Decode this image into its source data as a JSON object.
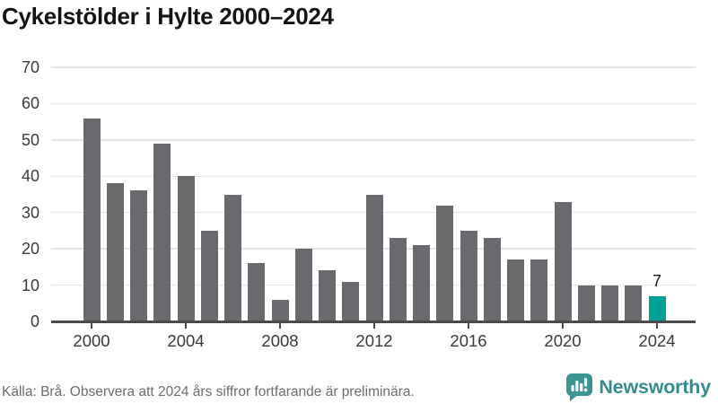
{
  "title": "Cykelstölder i Hylte 2000–2024",
  "chart_data": {
    "type": "bar",
    "title": "Cykelstölder i Hylte 2000–2024",
    "categories": [
      2000,
      2001,
      2002,
      2003,
      2004,
      2005,
      2006,
      2007,
      2008,
      2009,
      2010,
      2011,
      2012,
      2013,
      2014,
      2015,
      2016,
      2017,
      2018,
      2019,
      2020,
      2021,
      2022,
      2023,
      2024
    ],
    "values": [
      56,
      38,
      36,
      49,
      40,
      25,
      35,
      16,
      6,
      20,
      14,
      11,
      35,
      23,
      21,
      32,
      25,
      23,
      17,
      17,
      33,
      10,
      10,
      10,
      7
    ],
    "ylim": [
      0,
      70
    ],
    "yticks": [
      0,
      10,
      20,
      30,
      40,
      50,
      60,
      70
    ],
    "xticks": [
      2000,
      2004,
      2008,
      2012,
      2016,
      2020,
      2024
    ],
    "grid": "horizontal",
    "legend": "none",
    "bar_color": "#6c696e",
    "gridline_color": "#e5e5e5",
    "axis_color": "#4b4b4b",
    "highlight": {
      "year": 2024,
      "color": "#00a096",
      "label": "7"
    }
  },
  "footer": {
    "source_note": "Källa: Brå. Observera att 2024 års siffror fortfarande är preliminära."
  },
  "brand": {
    "name": "Newsworthy",
    "color": "#348c8c",
    "icon_color": "#3a9494",
    "icon": "newsworthy-speech-bubble-chart-icon"
  }
}
